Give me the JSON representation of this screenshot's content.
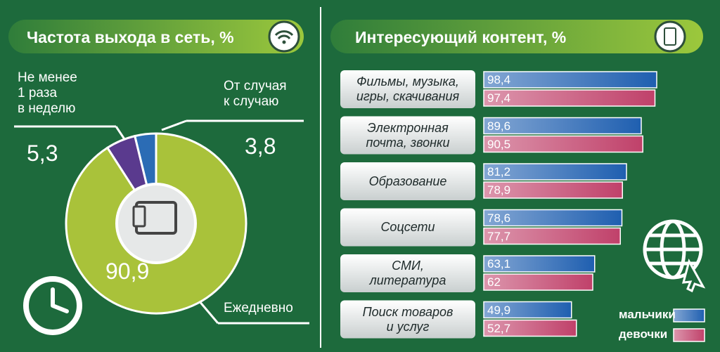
{
  "chart_data": [
    {
      "type": "pie",
      "title": "Частота выхода в сеть, %",
      "categories": [
        "Ежедневно",
        "Не менее\n1 раза\nв неделю",
        "От случая\nк случаю"
      ],
      "values": [
        90.9,
        5.3,
        3.8
      ],
      "value_labels": [
        "90,9",
        "5,3",
        "3,8"
      ],
      "colors": [
        "#a9c23a",
        "#5a3a8e",
        "#2b6cb5"
      ]
    },
    {
      "type": "bar",
      "orientation": "horizontal",
      "title": "Интересующий контент, %",
      "categories": [
        "Фильмы, музыка,\nигры, скачивания",
        "Электронная\nпочта, звонки",
        "Образование",
        "Соцсети",
        "СМИ,\nлитература",
        "Поиск товаров\nи услуг"
      ],
      "series": [
        {
          "name": "мальчики",
          "color": "#1f5fb0",
          "values": [
            98.4,
            89.6,
            81.2,
            78.6,
            63.1,
            49.9
          ],
          "value_labels": [
            "98,4",
            "89,6",
            "81,2",
            "78,6",
            "63,1",
            "49,9"
          ]
        },
        {
          "name": "девочки",
          "color": "#c0416a",
          "values": [
            97.4,
            90.5,
            78.9,
            77.7,
            62,
            52.7
          ],
          "value_labels": [
            "97,4",
            "90,5",
            "78,9",
            "77,7",
            "62",
            "52,7"
          ]
        }
      ]
    }
  ]
}
